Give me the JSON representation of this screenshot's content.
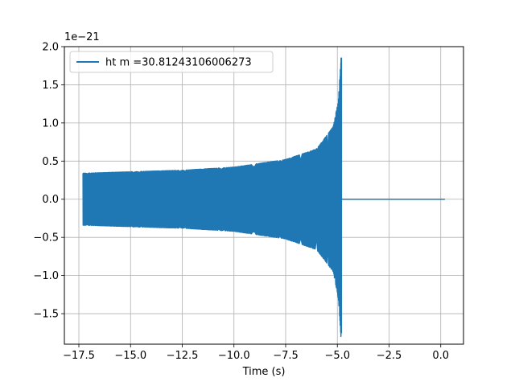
{
  "chart_data": {
    "type": "line",
    "title": "",
    "xlabel": "Time (s)",
    "ylabel": "",
    "y_offset_label": "1e−21",
    "xlim": [
      -18.2,
      1.1
    ],
    "ylim": [
      -1.9,
      2.0
    ],
    "x_ticks": [
      -17.5,
      -15.0,
      -12.5,
      -10.0,
      -7.5,
      -5.0,
      -2.5,
      0.0
    ],
    "x_tick_labels": [
      "−17.5",
      "−15.0",
      "−12.5",
      "−10.0",
      "−7.5",
      "−5.0",
      "−2.5",
      "0.0"
    ],
    "y_ticks": [
      -1.5,
      -1.0,
      -0.5,
      0.0,
      0.5,
      1.0,
      1.5,
      2.0
    ],
    "y_tick_labels": [
      "−1.5",
      "−1.0",
      "−0.5",
      "0.0",
      "0.5",
      "1.0",
      "1.5",
      "2.0"
    ],
    "grid": true,
    "legend_position": "top-left",
    "series": [
      {
        "name": "ht m =30.81243106006273",
        "color": "#1f77b4",
        "description_points": {
          "start_time": -17.3,
          "merger_time": -4.8,
          "end_time": 0.2,
          "start_amplitude": 0.34,
          "amplitude_near_merger": [
            [
              -17.3,
              0.34
            ],
            [
              -15.0,
              0.36
            ],
            [
              -12.5,
              0.38
            ],
            [
              -10.0,
              0.42
            ],
            [
              -7.5,
              0.52
            ],
            [
              -6.0,
              0.66
            ],
            [
              -5.2,
              0.95
            ],
            [
              -4.95,
              1.3
            ],
            [
              -4.82,
              1.85
            ]
          ],
          "min_value": -1.75,
          "max_value": 1.85
        }
      }
    ]
  }
}
